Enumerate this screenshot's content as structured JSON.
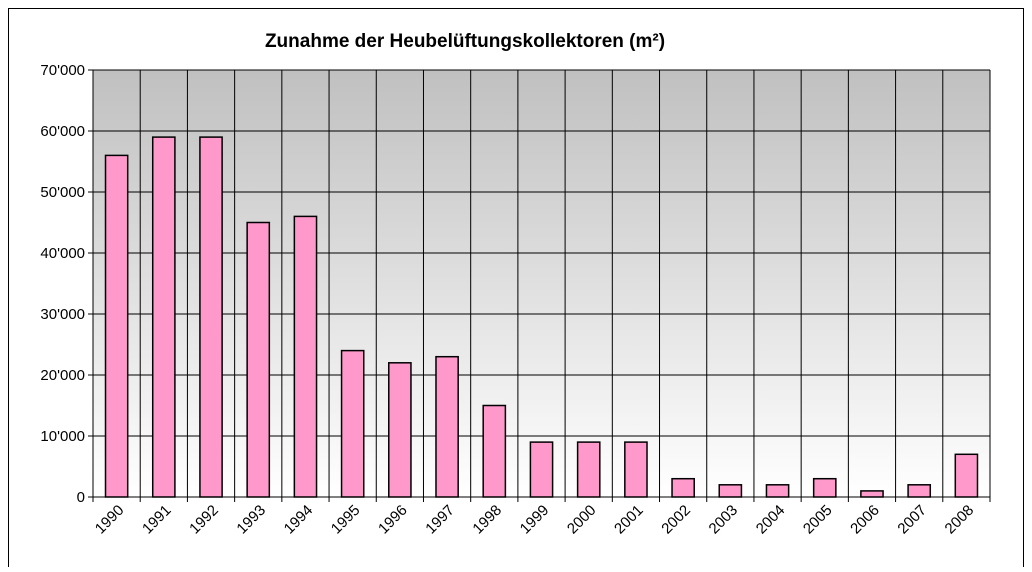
{
  "chart_data": {
    "type": "bar",
    "title": "Zunahme der Heubelüftungskollektoren (m²)",
    "categories": [
      "1990",
      "1991",
      "1992",
      "1993",
      "1994",
      "1995",
      "1996",
      "1997",
      "1998",
      "1999",
      "2000",
      "2001",
      "2002",
      "2003",
      "2004",
      "2005",
      "2006",
      "2007",
      "2008"
    ],
    "values": [
      56000,
      59000,
      59000,
      45000,
      46000,
      24000,
      22000,
      23000,
      15000,
      9000,
      9000,
      9000,
      3000,
      2000,
      2000,
      3000,
      1000,
      2000,
      7000
    ],
    "color": "#ff99cc",
    "ylim": [
      0,
      70000
    ],
    "yticks": [
      0,
      {
        "value": 10000,
        "label": "10'000"
      },
      {
        "value": 20000,
        "label": "20'000"
      },
      {
        "value": 30000,
        "label": "30'000"
      },
      {
        "value": 40000,
        "label": "40'000"
      },
      {
        "value": 50000,
        "label": "50'000"
      },
      {
        "value": 60000,
        "label": "60'000"
      },
      {
        "value": 70000,
        "label": "70'000"
      }
    ],
    "grid": true
  }
}
